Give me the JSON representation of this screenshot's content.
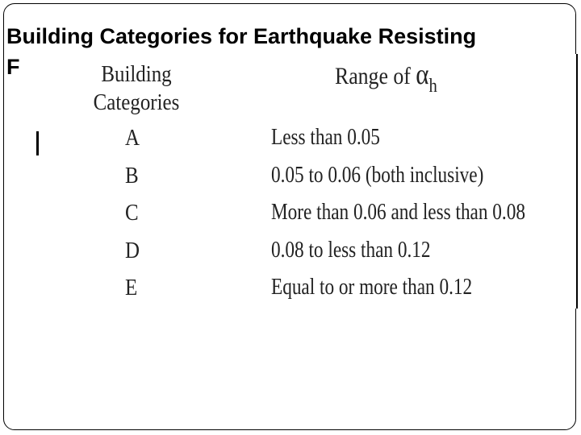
{
  "title": {
    "line1": "Building Categories for Earthquake Resisting",
    "line2": "F"
  },
  "table": {
    "header_category_line1": "Building",
    "header_category_line2": "Categories",
    "header_range_prefix": "Range of ",
    "header_range_symbol": "α",
    "header_range_subscript": "h",
    "rows": [
      {
        "category": "A",
        "range": "Less than 0.05"
      },
      {
        "category": "B",
        "range": "0.05 to 0.06 (both inclusive)"
      },
      {
        "category": "C",
        "range": "More than 0.06 and less than 0.08"
      },
      {
        "category": "D",
        "range": "0.08 to less than 0.12"
      },
      {
        "category": "E",
        "range": "Equal to or more than 0.12"
      }
    ]
  }
}
